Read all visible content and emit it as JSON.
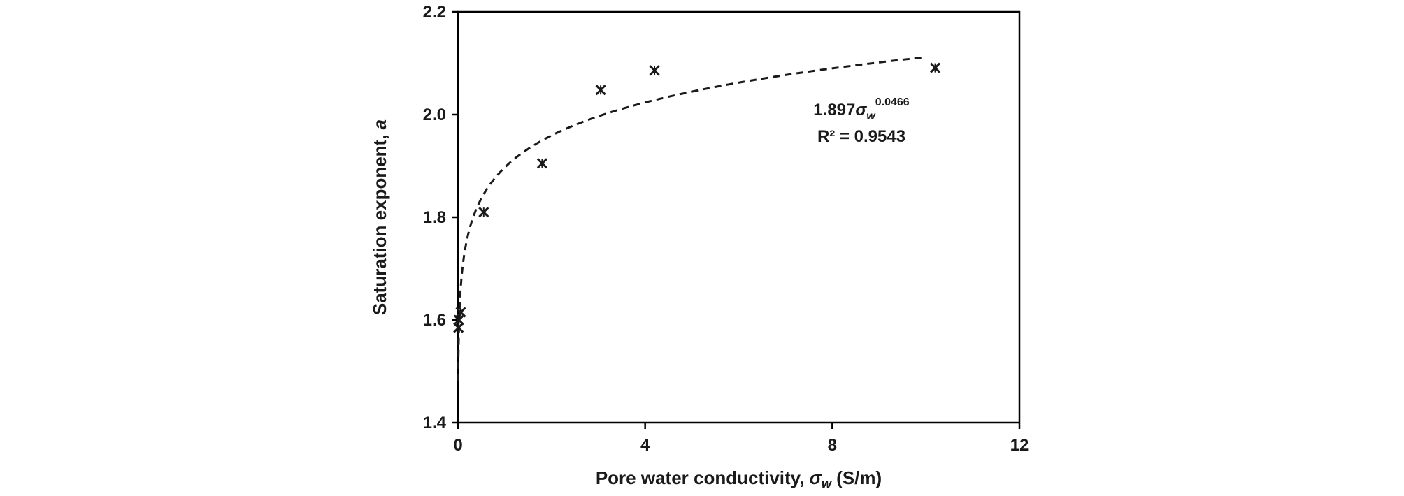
{
  "chart_data": {
    "type": "scatter",
    "title": "",
    "xlabel": {
      "prefix": "Pore water conductivity, ",
      "symbol": "σ",
      "subscript": "w",
      "suffix": " (S/m)"
    },
    "ylabel": {
      "prefix": "Saturation exponent, ",
      "symbol": "a"
    },
    "xlim": [
      0,
      12
    ],
    "ylim": [
      1.4,
      2.2
    ],
    "x_ticks": [
      0,
      4,
      8,
      12
    ],
    "x_tick_labels": [
      "0",
      "4",
      "8",
      "12"
    ],
    "y_ticks": [
      1.4,
      1.6,
      1.8,
      2.0,
      2.2
    ],
    "y_tick_labels": [
      "1.4",
      "1.6",
      "1.8",
      "2.0",
      "2.2"
    ],
    "grid": false,
    "legend": "none",
    "series": [
      {
        "marker": "star-x",
        "points": [
          {
            "x": 0.01,
            "y": 1.585
          },
          {
            "x": 0.02,
            "y": 1.6
          },
          {
            "x": 0.06,
            "y": 1.615
          },
          {
            "x": 0.55,
            "y": 1.81
          },
          {
            "x": 1.8,
            "y": 1.905
          },
          {
            "x": 3.05,
            "y": 2.048
          },
          {
            "x": 4.2,
            "y": 2.086
          },
          {
            "x": 10.2,
            "y": 2.091
          }
        ]
      }
    ],
    "trendline": {
      "style": "dashed",
      "a": 1.897,
      "b": 0.0466,
      "x_range": [
        0.005,
        10.0
      ]
    },
    "annotation": {
      "equation_coef": "1.897",
      "equation_symbol": "σ",
      "equation_subscript": "w",
      "equation_exponent": "0.0466",
      "r_squared": "R² = 0.9543"
    },
    "colors": {
      "axis": "#000000",
      "marker": "#1a1a1a",
      "trendline": "#1a1a1a",
      "text": "#1a1a1a"
    }
  }
}
